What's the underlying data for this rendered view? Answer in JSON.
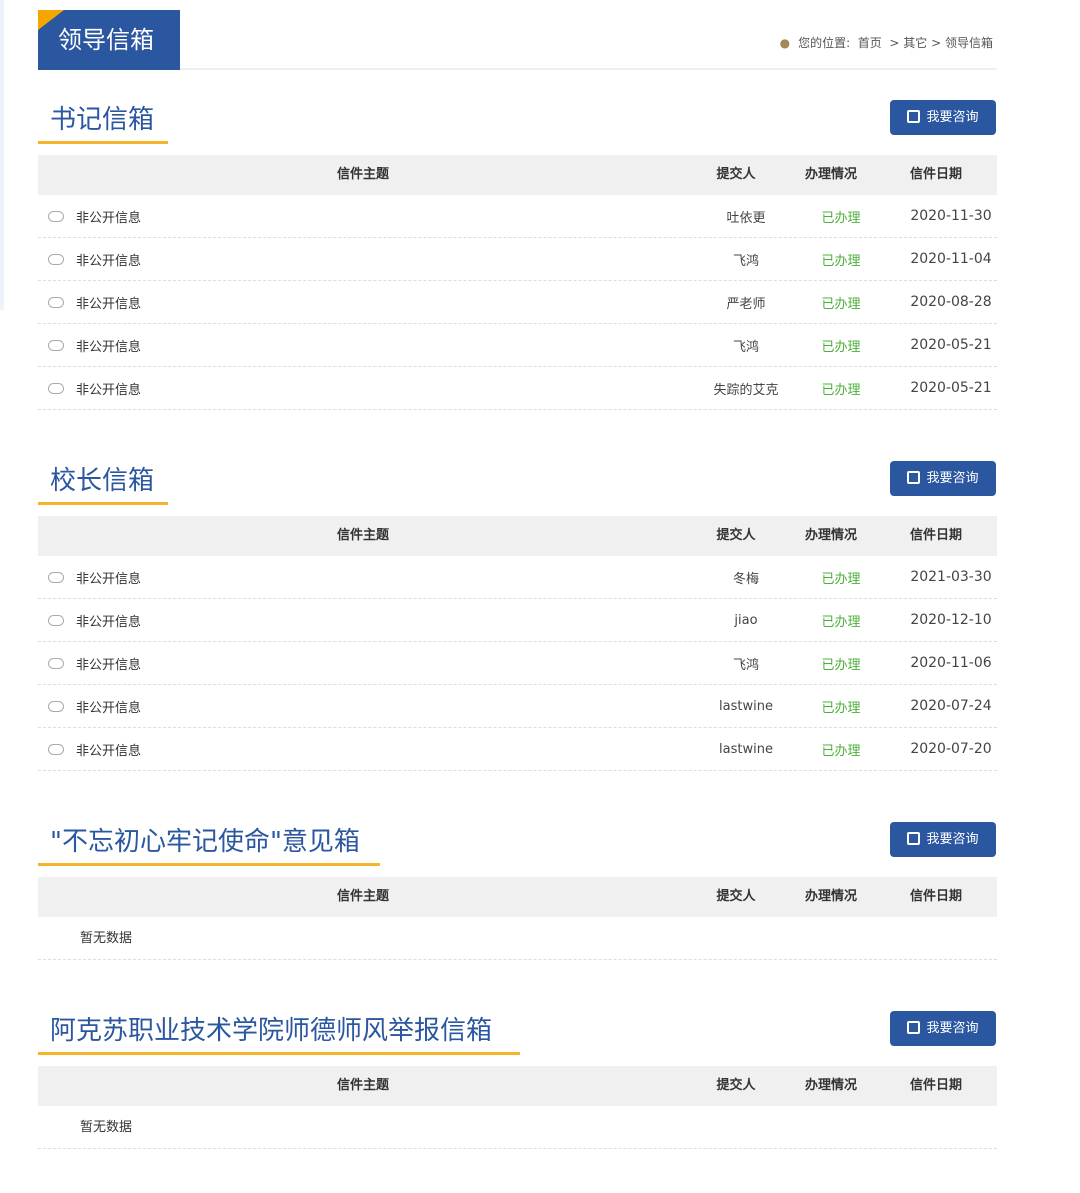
{
  "header": {
    "title": "领导信箱",
    "breadcrumb_label": "您的位置:",
    "breadcrumb": [
      "首页",
      "其它",
      "领导信箱"
    ]
  },
  "columns": {
    "subject": "信件主题",
    "submitter": "提交人",
    "status": "办理情况",
    "date": "信件日期"
  },
  "button_label": "我要咨询",
  "empty_text": "暂无数据",
  "colors": {
    "brand": "#2b56a0",
    "accent": "#f5b52a",
    "status": "#4caf3a"
  },
  "sections": [
    {
      "title": "书记信箱",
      "rows": [
        {
          "subject": "非公开信息",
          "submitter": "吐依更",
          "status": "已办理",
          "date": "2020-11-30"
        },
        {
          "subject": "非公开信息",
          "submitter": "飞鸿",
          "status": "已办理",
          "date": "2020-11-04"
        },
        {
          "subject": "非公开信息",
          "submitter": "严老师",
          "status": "已办理",
          "date": "2020-08-28"
        },
        {
          "subject": "非公开信息",
          "submitter": "飞鸿",
          "status": "已办理",
          "date": "2020-05-21"
        },
        {
          "subject": "非公开信息",
          "submitter": "失踪的艾克",
          "status": "已办理",
          "date": "2020-05-21"
        }
      ]
    },
    {
      "title": "校长信箱",
      "rows": [
        {
          "subject": "非公开信息",
          "submitter": "冬梅",
          "status": "已办理",
          "date": "2021-03-30"
        },
        {
          "subject": "非公开信息",
          "submitter": "jiao",
          "status": "已办理",
          "date": "2020-12-10"
        },
        {
          "subject": "非公开信息",
          "submitter": "飞鸿",
          "status": "已办理",
          "date": "2020-11-06"
        },
        {
          "subject": "非公开信息",
          "submitter": "lastwine",
          "status": "已办理",
          "date": "2020-07-24"
        },
        {
          "subject": "非公开信息",
          "submitter": "lastwine",
          "status": "已办理",
          "date": "2020-07-20"
        }
      ]
    },
    {
      "title": "\"不忘初心牢记使命\"意见箱",
      "rows": []
    },
    {
      "title": "阿克苏职业技术学院师德师风举报信箱",
      "rows": []
    }
  ]
}
